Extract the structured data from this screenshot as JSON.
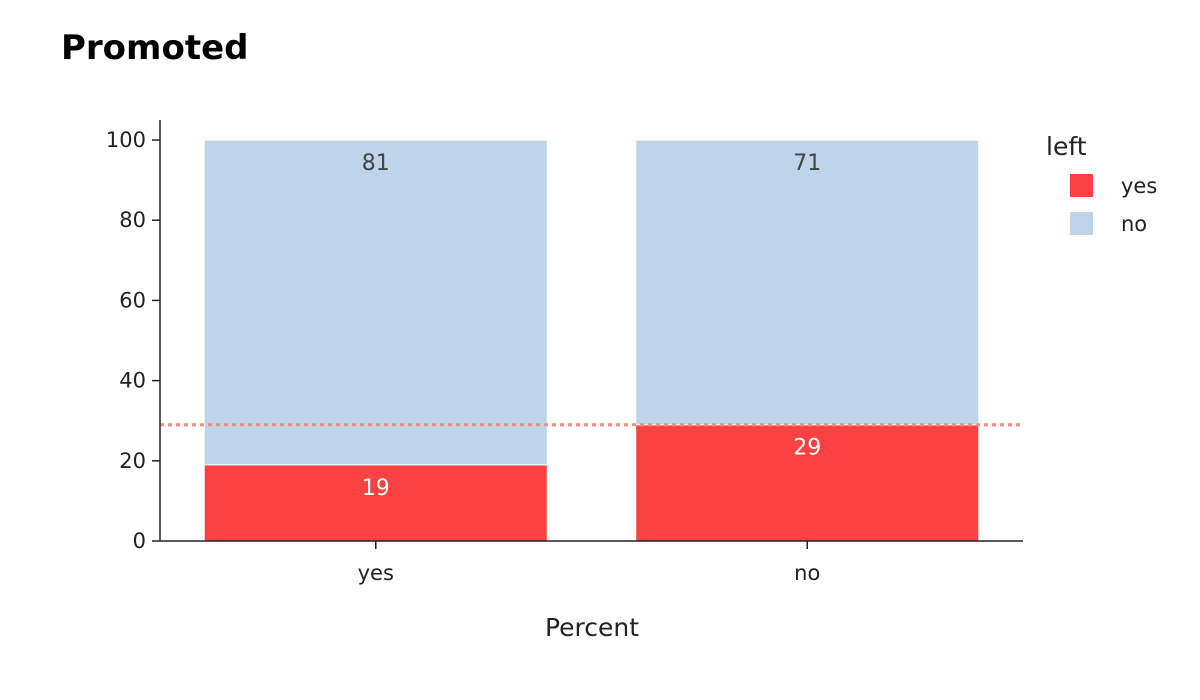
{
  "chart_data": {
    "type": "bar",
    "stacked": true,
    "title": "Promoted",
    "xlabel": "Percent",
    "ylabel": "",
    "categories": [
      "yes",
      "no"
    ],
    "series": [
      {
        "name": "yes",
        "values": [
          19,
          29
        ],
        "color": "#fc4143",
        "label_color": "#ffffff"
      },
      {
        "name": "no",
        "values": [
          81,
          71
        ],
        "color": "#bed4e8",
        "label_color": "#444444"
      }
    ],
    "ylim": [
      0,
      105
    ],
    "yticks": [
      0,
      20,
      40,
      60,
      80,
      100
    ],
    "reference_line": {
      "value": 29,
      "color": "#f08f82",
      "style": "dotted"
    },
    "legend": {
      "title": "left",
      "position": "right"
    },
    "grid": false
  }
}
